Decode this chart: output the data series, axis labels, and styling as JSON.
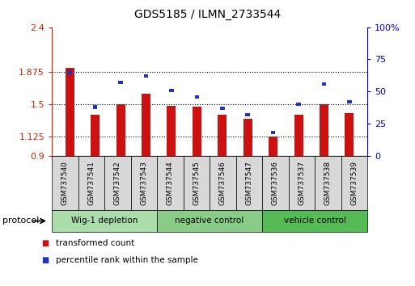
{
  "title": "GDS5185 / ILMN_2733544",
  "samples": [
    "GSM737540",
    "GSM737541",
    "GSM737542",
    "GSM737543",
    "GSM737544",
    "GSM737545",
    "GSM737546",
    "GSM737547",
    "GSM737536",
    "GSM737537",
    "GSM737538",
    "GSM737539"
  ],
  "red_values": [
    1.93,
    1.38,
    1.5,
    1.62,
    1.48,
    1.47,
    1.38,
    1.33,
    1.13,
    1.38,
    1.5,
    1.4
  ],
  "blue_pct": [
    65,
    38,
    57,
    62,
    51,
    46,
    37,
    32,
    18,
    40,
    56,
    42
  ],
  "groups": [
    {
      "label": "Wig-1 depletion",
      "start": 0,
      "end": 4,
      "color": "#aaddaa"
    },
    {
      "label": "negative control",
      "start": 4,
      "end": 8,
      "color": "#88cc88"
    },
    {
      "label": "vehicle control",
      "start": 8,
      "end": 12,
      "color": "#55bb55"
    }
  ],
  "ylim_left": [
    0.9,
    2.4
  ],
  "ylim_right": [
    0,
    100
  ],
  "yticks_left": [
    0.9,
    1.125,
    1.5,
    1.875,
    2.4
  ],
  "ytick_labels_left": [
    "0.9",
    "1.125",
    "1.5",
    "1.875",
    "2.4"
  ],
  "yticks_right": [
    0,
    25,
    50,
    75,
    100
  ],
  "ytick_labels_right": [
    "0",
    "25",
    "50",
    "75",
    "100%"
  ],
  "hlines": [
    1.125,
    1.5,
    1.875
  ],
  "bar_color_red": "#cc1111",
  "bar_color_blue": "#2233bb",
  "left_axis_color": "#cc2200",
  "right_axis_color": "#0000cc",
  "legend_red": "transformed count",
  "legend_blue": "percentile rank within the sample",
  "red_bar_width": 0.35,
  "blue_bar_width": 0.18
}
